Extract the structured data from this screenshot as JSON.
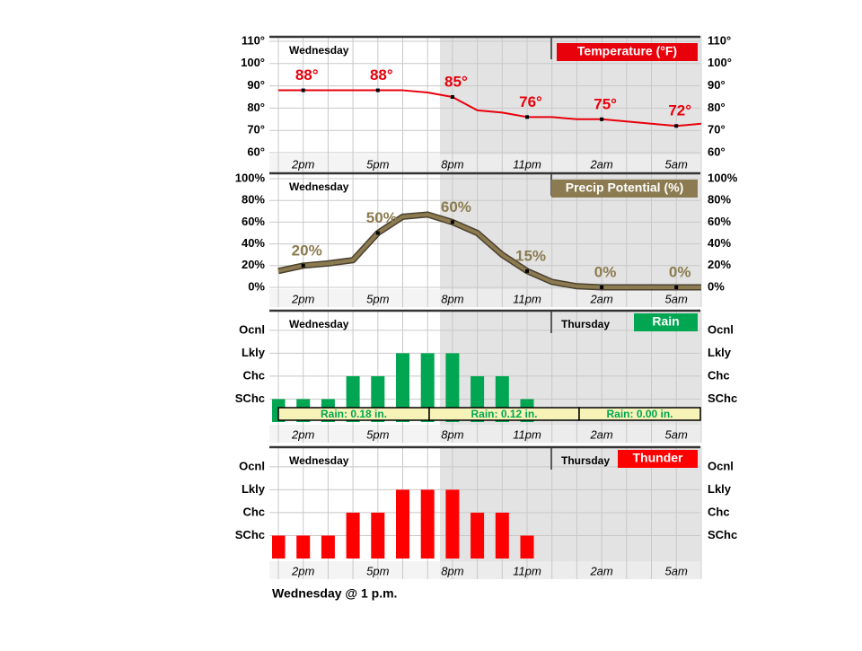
{
  "chart_data": [
    {
      "type": "line",
      "title": "Temperature (°F)",
      "day_labels": [
        "Wednesday"
      ],
      "color": "#e8000b",
      "categories": [
        null,
        "2pm",
        null,
        null,
        "5pm",
        null,
        null,
        "8pm",
        null,
        null,
        "11pm",
        null,
        null,
        "2am",
        null,
        null,
        "5am",
        null
      ],
      "values": [
        88,
        88,
        88,
        88,
        88,
        88,
        87,
        85,
        79,
        78,
        76,
        76,
        75,
        75,
        74,
        73,
        72,
        73
      ],
      "value_labels": [
        null,
        "88°",
        null,
        null,
        "88°",
        null,
        null,
        "85°",
        null,
        null,
        "76°",
        null,
        null,
        "75°",
        null,
        null,
        "72°",
        null
      ],
      "ylim": [
        60,
        110
      ],
      "yticks": [
        {
          "value": 60,
          "label": "60°"
        },
        {
          "value": 70,
          "label": "70°"
        },
        {
          "value": 80,
          "label": "80°"
        },
        {
          "value": 90,
          "label": "90°"
        },
        {
          "value": 100,
          "label": "100°"
        },
        {
          "value": 110,
          "label": "110°"
        }
      ],
      "grid": true
    },
    {
      "type": "line",
      "title": "Precip Potential (%)",
      "day_labels": [
        "Wednesday"
      ],
      "color": "#8c7b50",
      "categories": [
        null,
        "2pm",
        null,
        null,
        "5pm",
        null,
        null,
        "8pm",
        null,
        null,
        "11pm",
        null,
        null,
        "2am",
        null,
        null,
        "5am",
        null
      ],
      "values": [
        15,
        20,
        22,
        25,
        50,
        65,
        67,
        60,
        50,
        30,
        15,
        5,
        1,
        0,
        0,
        0,
        0,
        0
      ],
      "value_labels": [
        null,
        "20%",
        null,
        null,
        "50%",
        null,
        null,
        "60%",
        null,
        null,
        "15%",
        null,
        null,
        "0%",
        null,
        null,
        "0%",
        null
      ],
      "ylim": [
        0,
        100
      ],
      "yticks": [
        {
          "value": 0,
          "label": "0%"
        },
        {
          "value": 20,
          "label": "20%"
        },
        {
          "value": 40,
          "label": "40%"
        },
        {
          "value": 60,
          "label": "60%"
        },
        {
          "value": 80,
          "label": "80%"
        },
        {
          "value": 100,
          "label": "100%"
        }
      ],
      "grid": true
    },
    {
      "type": "bar",
      "title": "Rain",
      "day_labels": [
        "Wednesday",
        "Thursday"
      ],
      "color": "#00a651",
      "categories": [
        null,
        "2pm",
        null,
        null,
        "5pm",
        null,
        null,
        "8pm",
        null,
        null,
        "11pm",
        null,
        null,
        "2am",
        null,
        null,
        "5am",
        null
      ],
      "values": [
        1,
        1,
        1,
        2,
        2,
        3,
        3,
        3,
        2,
        2,
        1,
        0,
        0,
        0,
        0,
        0,
        0,
        0
      ],
      "ylim": [
        0,
        4.7
      ],
      "yticks": [
        {
          "value": 1,
          "label": "SChc"
        },
        {
          "value": 2,
          "label": "Chc"
        },
        {
          "value": 3,
          "label": "Lkly"
        },
        {
          "value": 4,
          "label": "Ocnl"
        }
      ],
      "annotations": [
        "Rain: 0.18 in.",
        "Rain: 0.12 in.",
        "Rain: 0.00 in."
      ],
      "grid": true
    },
    {
      "type": "bar",
      "title": "Thunder",
      "day_labels": [
        "Wednesday",
        "Thursday"
      ],
      "color": "#ff0000",
      "categories": [
        null,
        "2pm",
        null,
        null,
        "5pm",
        null,
        null,
        "8pm",
        null,
        null,
        "11pm",
        null,
        null,
        "2am",
        null,
        null,
        "5am",
        null
      ],
      "values": [
        1,
        1,
        1,
        2,
        2,
        3,
        3,
        3,
        2,
        2,
        1,
        0,
        0,
        0,
        0,
        0,
        0,
        0
      ],
      "ylim": [
        0,
        4.7
      ],
      "yticks": [
        {
          "value": 1,
          "label": "SChc"
        },
        {
          "value": 2,
          "label": "Chc"
        },
        {
          "value": 3,
          "label": "Lkly"
        },
        {
          "value": 4,
          "label": "Ocnl"
        }
      ],
      "grid": true
    }
  ],
  "caption": "Wednesday @ 1 p.m."
}
